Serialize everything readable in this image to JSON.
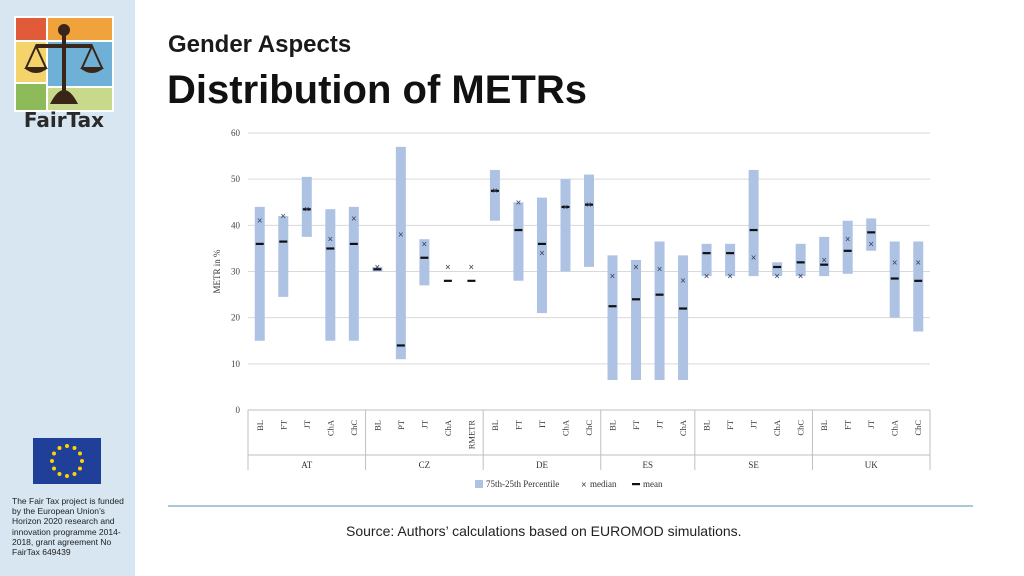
{
  "slide": {
    "subtitle": "Gender Aspects",
    "title": "Distribution of METRs",
    "source": "Source: Authors’ calculations based on EUROMOD simulations.",
    "brand": "FairTax",
    "funding_text": "The Fair Tax project is funded by the European Union’s Horizon 2020 research and innovation programme 2014-2018, grant agreement No FairTax 649439",
    "logo_icon": "fairtax-scales-logo-icon",
    "eu_icon": "eu-flag-icon"
  },
  "colors": {
    "sidebar": "#d7e6f1",
    "box": "#aec3e4",
    "median": "#3a3f58",
    "mean": "#111111",
    "rule": "#a9c9d6"
  },
  "chart_data": {
    "type": "box",
    "title": "",
    "xlabel": "",
    "ylabel": "METR in %",
    "ylim": [
      0,
      60
    ],
    "yticks": [
      0,
      10,
      20,
      30,
      40,
      50,
      60
    ],
    "grid": true,
    "legend_position": "bottom",
    "legend": [
      "75th-25th Percentile",
      "median",
      "mean"
    ],
    "groups": [
      {
        "name": "AT",
        "items": [
          {
            "label": "BL",
            "p25": 15,
            "p75": 44,
            "median": 41,
            "mean": 36
          },
          {
            "label": "FT",
            "p25": 24.5,
            "p75": 42,
            "median": 42,
            "mean": 36.5
          },
          {
            "label": "JT",
            "p25": 37.5,
            "p75": 50.5,
            "median": 43.5,
            "mean": 43.5
          },
          {
            "label": "ChA",
            "p25": 15,
            "p75": 43.5,
            "median": 37,
            "mean": 35
          },
          {
            "label": "ChC",
            "p25": 15,
            "p75": 44,
            "median": 41.5,
            "mean": 36
          }
        ]
      },
      {
        "name": "CZ",
        "items": [
          {
            "label": "BL",
            "p25": 30,
            "p75": 31,
            "median": 31,
            "mean": 30.5
          },
          {
            "label": "PT",
            "p25": 11,
            "p75": 57,
            "median": 38,
            "mean": 14
          },
          {
            "label": "JT",
            "p25": 27,
            "p75": 37,
            "median": 36,
            "mean": 33
          },
          {
            "label": "ChA",
            "p25": null,
            "p75": null,
            "median": 31,
            "mean": 28
          },
          {
            "label": "RMETR",
            "p25": null,
            "p75": null,
            "median": 31,
            "mean": 28
          }
        ]
      },
      {
        "name": "DE",
        "items": [
          {
            "label": "BL",
            "p25": 41,
            "p75": 52,
            "median": 47.5,
            "mean": 47.5
          },
          {
            "label": "FT",
            "p25": 28,
            "p75": 45,
            "median": 45,
            "mean": 39
          },
          {
            "label": "IT",
            "p25": 21,
            "p75": 46,
            "median": 34,
            "mean": 36
          },
          {
            "label": "ChA",
            "p25": 30,
            "p75": 50,
            "median": 44,
            "mean": 44
          },
          {
            "label": "ChC",
            "p25": 31,
            "p75": 51,
            "median": 44.5,
            "mean": 44.5
          }
        ]
      },
      {
        "name": "ES",
        "items": [
          {
            "label": "BL",
            "p25": 6.5,
            "p75": 33.5,
            "median": 29,
            "mean": 22.5
          },
          {
            "label": "FT",
            "p25": 6.5,
            "p75": 32.5,
            "median": 31,
            "mean": 24
          },
          {
            "label": "JT",
            "p25": 6.5,
            "p75": 36.5,
            "median": 30.5,
            "mean": 25
          },
          {
            "label": "ChA",
            "p25": 6.5,
            "p75": 33.5,
            "median": 28,
            "mean": 22
          }
        ]
      },
      {
        "name": "SE",
        "items": [
          {
            "label": "BL",
            "p25": 29,
            "p75": 36,
            "median": 29,
            "mean": 34
          },
          {
            "label": "FT",
            "p25": 29,
            "p75": 36,
            "median": 29,
            "mean": 34
          },
          {
            "label": "JT",
            "p25": 29,
            "p75": 52,
            "median": 33,
            "mean": 39
          },
          {
            "label": "ChA",
            "p25": 29,
            "p75": 32,
            "median": 29,
            "mean": 31
          },
          {
            "label": "ChC",
            "p25": 29,
            "p75": 36,
            "median": 29,
            "mean": 32
          }
        ]
      },
      {
        "name": "UK",
        "items": [
          {
            "label": "BL",
            "p25": 29,
            "p75": 37.5,
            "median": 32.5,
            "mean": 31.5
          },
          {
            "label": "FT",
            "p25": 29.5,
            "p75": 41,
            "median": 37,
            "mean": 34.5
          },
          {
            "label": "JT",
            "p25": 34.5,
            "p75": 41.5,
            "median": 36,
            "mean": 38.5
          },
          {
            "label": "ChA",
            "p25": 20,
            "p75": 36.5,
            "median": 32,
            "mean": 28.5
          },
          {
            "label": "ChC",
            "p25": 17,
            "p75": 36.5,
            "median": 32,
            "mean": 28
          }
        ]
      }
    ]
  }
}
